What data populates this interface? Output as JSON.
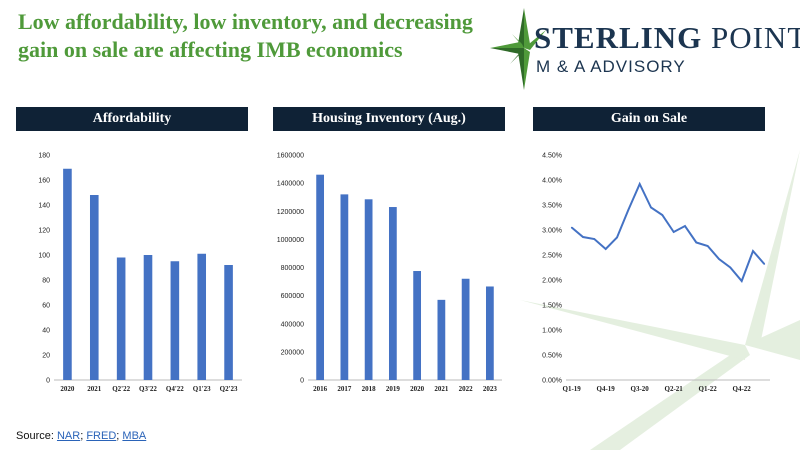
{
  "title_line1": "Low affordability, low inventory, and decreasing",
  "title_line2": "gain on sale are affecting IMB economics",
  "logo": {
    "name_bold": "STERLING",
    "name_rest": " POINT",
    "subtitle": "M & A ADVISORY",
    "colors": {
      "green": "#4f9a3a",
      "navy": "#1c3550"
    }
  },
  "colors": {
    "bar": "#4472c4",
    "header_bg": "#0f2236",
    "line": "#4472c4",
    "title": "#4f9a3a"
  },
  "source": {
    "prefix": "Source: ",
    "links": [
      "NAR",
      "FRED",
      "MBA"
    ],
    "sep": "; "
  },
  "chart_data": [
    {
      "type": "bar",
      "title": "Affordability",
      "categories": [
        "2020",
        "2021",
        "Q2'22",
        "Q3'22",
        "Q4'22",
        "Q1'23",
        "Q2'23"
      ],
      "values": [
        169,
        148,
        98,
        100,
        95,
        101,
        92
      ],
      "ylim": [
        0,
        180
      ],
      "yticks": [
        "0",
        "20",
        "40",
        "60",
        "80",
        "100",
        "120",
        "140",
        "160",
        "180"
      ],
      "grid": false
    },
    {
      "type": "bar",
      "title": "Housing Inventory (Aug.)",
      "categories": [
        "2016",
        "2017",
        "2018",
        "2019",
        "2020",
        "2021",
        "2022",
        "2023"
      ],
      "values": [
        1460000,
        1320000,
        1285000,
        1230000,
        775000,
        570000,
        720000,
        665000
      ],
      "ylim": [
        0,
        1600000
      ],
      "yticks": [
        "0",
        "200000",
        "400000",
        "600000",
        "800000",
        "1000000",
        "1200000",
        "1400000",
        "1600000"
      ],
      "grid": false
    },
    {
      "type": "line",
      "title": "Gain on Sale",
      "x": [
        "Q1-19",
        "Q2-19",
        "Q3-19",
        "Q4-19",
        "Q1-20",
        "Q2-20",
        "Q3-20",
        "Q4-20",
        "Q1-21",
        "Q2-21",
        "Q3-21",
        "Q4-21",
        "Q1-22",
        "Q2-22",
        "Q3-22",
        "Q4-22",
        "Q1-23",
        "Q2-23"
      ],
      "xticks": [
        "Q1-19",
        "Q4-19",
        "Q3-20",
        "Q2-21",
        "Q1-22",
        "Q4-22"
      ],
      "values": [
        3.05,
        2.86,
        2.82,
        2.62,
        2.85,
        3.4,
        3.92,
        3.45,
        3.3,
        2.96,
        3.08,
        2.75,
        2.68,
        2.42,
        2.25,
        1.98,
        2.58,
        2.32
      ],
      "ylim": [
        0,
        4.5
      ],
      "yticks": [
        "0.00%",
        "0.50%",
        "1.00%",
        "1.50%",
        "2.00%",
        "2.50%",
        "3.00%",
        "3.50%",
        "4.00%",
        "4.50%"
      ],
      "grid": false
    }
  ]
}
